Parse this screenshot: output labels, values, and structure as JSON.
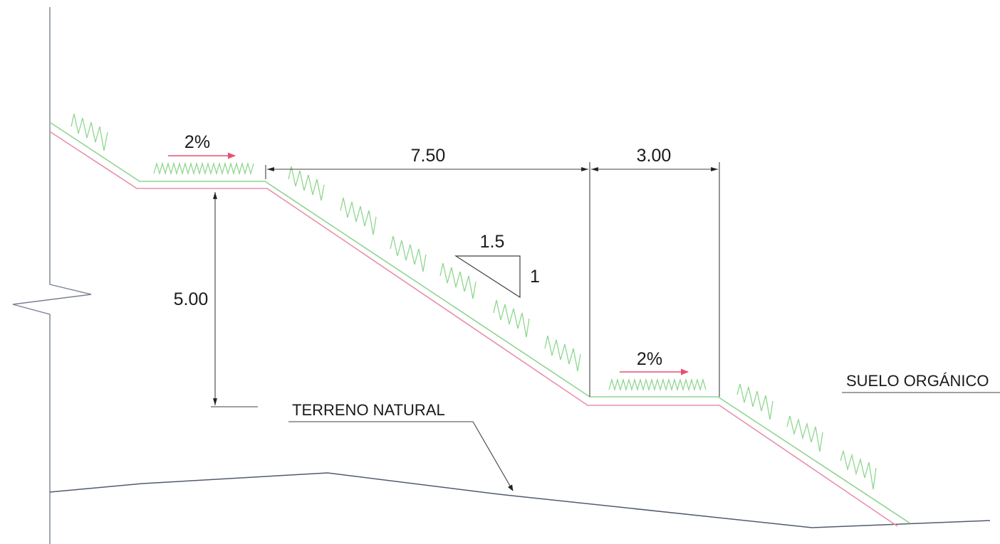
{
  "drawing": {
    "dimensions": {
      "berm_width_upper": "7.50",
      "berm_width_lower": "3.00",
      "bench_height": "5.00"
    },
    "slope_ratio": {
      "horizontal": "1.5",
      "vertical": "1"
    },
    "drainage_slopes": {
      "upper_berm": "2%",
      "lower_berm": "2%"
    },
    "labels": {
      "natural_ground": "TERRENO NATURAL",
      "organic_soil": "SUELO ORGÁNICO"
    },
    "colors": {
      "vegetation": "#8fd68f",
      "excavation_line": "#e890a8",
      "drainage_arrow": "#e8506e",
      "dimension_line": "#404040",
      "ground_line": "#505a6e"
    }
  }
}
